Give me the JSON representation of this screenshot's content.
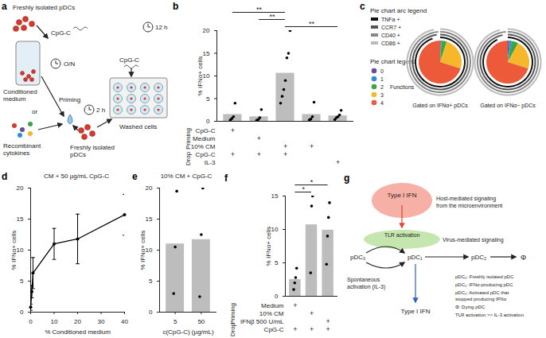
{
  "diagram_a": {
    "panel": "a",
    "texts": {
      "pdcs_top": "Freshly isolated pDCs",
      "cpg_top": "CpG-C",
      "overnight": "O/N",
      "conditioned": [
        "Conditioned",
        "medium"
      ],
      "or": "or",
      "recombinant": [
        "Recombinant",
        "cytokines"
      ],
      "priming": "Priming",
      "priming_time": "2 h",
      "pdcs_bottom": [
        "Freshly isolated",
        "pDCs"
      ],
      "cpg_right": "CpG-C",
      "incubation": "12 h",
      "washed": "Washed cells"
    }
  },
  "chart_data": [
    {
      "panel": "b",
      "type": "bar",
      "ylabel": "% IFNα+ cells",
      "categories": [
        null,
        null,
        null,
        null,
        null
      ],
      "values": [
        1.5,
        1.0,
        10.6,
        1.5,
        1.2
      ],
      "points": [
        [
          0.3,
          0.6,
          1.0,
          4.0
        ],
        [
          0.2,
          0.4,
          0.8,
          2.6
        ],
        [
          4.0,
          5.5,
          7.0,
          9.0,
          14.0,
          15.0,
          20.0
        ],
        [
          0.3,
          0.5,
          1.0,
          4.2
        ],
        [
          0.4,
          0.8,
          1.0,
          1.4,
          2.4
        ]
      ],
      "color": "#bdbdbd",
      "ylim": [
        0,
        20
      ],
      "yticks": [
        0,
        5,
        10,
        15,
        20
      ],
      "significance": [
        {
          "from": 0,
          "to": 2,
          "label": "**"
        },
        {
          "from": 1,
          "to": 2,
          "label": "**"
        },
        {
          "from": 2,
          "to": 4,
          "label": "**"
        }
      ],
      "table": [
        {
          "group": "Priming",
          "rows": [
            {
              "label": "CpG-C",
              "marks": [
                "+",
                null,
                null,
                null,
                null
              ]
            },
            {
              "label": "Medium",
              "marks": [
                null,
                "+",
                null,
                null,
                null
              ]
            },
            {
              "label": "10% CM",
              "marks": [
                null,
                null,
                "+",
                "+",
                null
              ]
            }
          ]
        },
        {
          "group": "Drop",
          "rows": [
            {
              "label": "CpG-C",
              "marks": [
                "+",
                "+",
                "+",
                null,
                null
              ]
            },
            {
              "label": "IL-3",
              "marks": [
                null,
                null,
                null,
                null,
                "+"
              ]
            }
          ]
        }
      ]
    },
    {
      "panel": "c",
      "type": "pie",
      "arc_legend_title": "Pie chart arc legend",
      "pie_legend_title": "Pie chart legend",
      "functions_label": "Functions",
      "categories": [
        "0",
        "1",
        "2",
        "3",
        "4"
      ],
      "colors": [
        "#6a4c9c",
        "#2f8fce",
        "#3aa648",
        "#f6b72a",
        "#ec5a3a"
      ],
      "arc_categories": [
        "TNFa +",
        "CCR7 +",
        "CD40 +",
        "CD86 +"
      ],
      "arc_colors": [
        "#111111",
        "#555555",
        "#888888",
        "#bbbbbb"
      ],
      "pies": [
        {
          "title": "Gated on IFNα+ pDCs",
          "values": [
            0.5,
            0.5,
            4,
            25,
            70
          ],
          "arcs": [
            95,
            98,
            99,
            97
          ]
        },
        {
          "title": "Gated on IFNα− pDCs",
          "values": [
            1,
            2,
            5,
            22,
            70
          ],
          "arcs": [
            93,
            97,
            99,
            96
          ]
        }
      ]
    },
    {
      "panel": "d",
      "type": "line",
      "title": "CM + 50 µg/mL CpG-C",
      "xlabel": "% Conditioned medium",
      "ylabel": "% IFNα+ cells",
      "x": [
        0,
        0.5,
        1,
        10,
        20,
        40
      ],
      "values": [
        0.8,
        3.3,
        6.3,
        11.0,
        11.8,
        15.7
      ],
      "errors": [
        0.5,
        1.0,
        2.5,
        2.5,
        4.0,
        3.3
      ],
      "xlim": [
        0,
        40
      ],
      "xticks": [
        0,
        10,
        20,
        30,
        40
      ],
      "ylim": [
        0,
        20
      ],
      "yticks": [
        0,
        5,
        10,
        15,
        20
      ],
      "color": "#000000",
      "marker": "circle"
    },
    {
      "panel": "e",
      "type": "bar",
      "title": "10% CM + CpG-C",
      "xlabel": "c(CpG-C) (µg/mL)",
      "ylabel": "% IFNα+ cells",
      "categories": [
        "5",
        "50"
      ],
      "values": [
        11.0,
        11.7
      ],
      "points": [
        [
          3.0,
          10.5,
          19.5
        ],
        [
          2.5,
          12.5,
          20.0
        ]
      ],
      "color": "#bdbdbd",
      "ylim": [
        0,
        20
      ],
      "yticks": [
        0,
        5,
        10,
        15,
        20
      ]
    },
    {
      "panel": "f",
      "type": "bar",
      "ylabel": "% IFNα+ cells",
      "categories": [
        null,
        null,
        null
      ],
      "values": [
        2.5,
        10.7,
        9.9
      ],
      "points": [
        [
          1.0,
          2.0,
          2.8,
          4.2
        ],
        [
          3.5,
          13.5,
          15.0
        ],
        [
          4.8,
          9.0,
          11.8,
          14.0
        ]
      ],
      "color": "#bdbdbd",
      "ylim": [
        0,
        15
      ],
      "yticks": [
        0,
        5,
        10,
        15
      ],
      "significance": [
        {
          "from": 0,
          "to": 2,
          "label": "*"
        },
        {
          "from": 0,
          "to": 1,
          "label": "*"
        }
      ],
      "table": [
        {
          "group": "Priming",
          "rows": [
            {
              "label": "Medium",
              "marks": [
                "+",
                null,
                null
              ]
            },
            {
              "label": "10% CM",
              "marks": [
                null,
                "+",
                null
              ]
            },
            {
              "label": "IFNβ 500 U/mL",
              "marks": [
                null,
                null,
                "+"
              ]
            }
          ]
        },
        {
          "group": "Drop",
          "rows": [
            {
              "label": "CpG-C",
              "marks": [
                "+",
                "+",
                "+"
              ]
            }
          ]
        }
      ]
    }
  ],
  "diagram_g": {
    "panel": "g",
    "ifn_top": "Type I IFN",
    "host": [
      "Host-mediated signaling",
      "from the microenvironment"
    ],
    "tlr": "TLR activation",
    "virus": "Virus-mediated signaling",
    "pdc0": "pDC₀",
    "pdc1": "pDC₁",
    "pdc2": "pDC₂",
    "dying": "Φ",
    "spontaneous": [
      "Spontaneous",
      "activation (IL-3)"
    ],
    "ifn_bottom": "Type I IFN",
    "key": [
      [
        "pDC₀: Freshly isolated pDC"
      ],
      [
        "pDC₁: IFNα-producing pDC"
      ],
      [
        "pDC₂: Activated pDC that",
        "stopped producing IFNα"
      ],
      [
        "Φ: Dying pDC"
      ],
      [
        "TLR activation >> IL-3 activation"
      ]
    ]
  }
}
